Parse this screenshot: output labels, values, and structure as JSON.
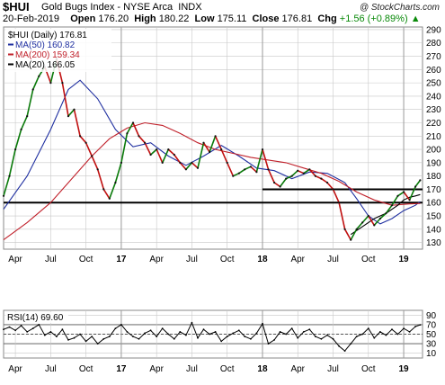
{
  "header": {
    "symbol": "$HUI",
    "index_name": "Gold Bugs Index - NYSE Arca",
    "index_type": "INDX",
    "credit": "@ StockCharts.com",
    "date": "20-Feb-2019",
    "open_label": "Open",
    "open": "176.20",
    "high_label": "High",
    "high": "180.22",
    "low_label": "Low",
    "low": "175.11",
    "close_label": "Close",
    "close": "176.81",
    "chg_label": "Chg",
    "chg": "+1.56 (+0.89%)",
    "up_arrow": "▲"
  },
  "colors": {
    "price_up": "#0a7a0a",
    "price_down": "#c01010",
    "ma50": "#1f2fa0",
    "ma200": "#c0202a",
    "ma20": "#000000",
    "rsi": "#000000",
    "grid": "#c8c8c8",
    "chg": "#0a8a0a"
  },
  "chart_data": [
    {
      "type": "line",
      "title": "",
      "legend": [
        {
          "label": "$HUI (Daily) 176.81",
          "marker": "none"
        },
        {
          "label": "MA(50) 160.82",
          "color": "#1f2fa0"
        },
        {
          "label": "MA(200) 159.34",
          "color": "#c0202a"
        },
        {
          "label": "MA(20) 166.05",
          "color": "#000000"
        }
      ],
      "legend_position": "top-left",
      "x_tick_labels": [
        "Apr",
        "Jul",
        "Oct",
        "17",
        "Apr",
        "Jul",
        "Oct",
        "18",
        "Apr",
        "Jul",
        "Oct",
        "19"
      ],
      "x_tick_months": [
        3,
        6,
        9,
        12,
        15,
        18,
        21,
        24,
        27,
        30,
        33,
        36
      ],
      "x_range_months": [
        2.0,
        37.6
      ],
      "y_ticks": [
        130,
        140,
        150,
        160,
        170,
        180,
        190,
        200,
        210,
        220,
        230,
        240,
        250,
        260,
        270,
        280,
        290
      ],
      "ylim": [
        125,
        292
      ],
      "horizontal_lines": [
        {
          "y": 170,
          "x_start_month": 24.0
        },
        {
          "y": 160,
          "x_start_month": 2.0
        }
      ],
      "series": [
        {
          "name": "$HUI (Daily)",
          "x_months": [
            2.0,
            2.5,
            3.0,
            3.5,
            4.0,
            4.5,
            5.0,
            5.5,
            6.0,
            6.5,
            7.0,
            7.5,
            8.0,
            8.5,
            9.0,
            9.5,
            10.0,
            10.5,
            11.0,
            11.5,
            12.0,
            12.5,
            13.0,
            13.5,
            14.0,
            14.5,
            15.0,
            15.5,
            16.0,
            16.5,
            17.0,
            17.5,
            18.0,
            18.5,
            19.0,
            19.5,
            20.0,
            20.5,
            21.0,
            21.5,
            22.0,
            22.5,
            23.0,
            23.5,
            24.0,
            24.5,
            25.0,
            25.5,
            26.0,
            26.5,
            27.0,
            27.5,
            28.0,
            28.5,
            29.0,
            29.5,
            30.0,
            30.5,
            31.0,
            31.5,
            32.0,
            32.5,
            33.0,
            33.5,
            34.0,
            34.5,
            35.0,
            35.5,
            36.0,
            36.5,
            37.0,
            37.4
          ],
          "values": [
            165,
            180,
            200,
            215,
            225,
            245,
            255,
            262,
            250,
            268,
            250,
            225,
            230,
            210,
            205,
            195,
            185,
            170,
            163,
            175,
            190,
            212,
            220,
            210,
            205,
            196,
            200,
            190,
            200,
            196,
            190,
            185,
            190,
            186,
            205,
            198,
            210,
            200,
            190,
            180,
            182,
            185,
            187,
            183,
            200,
            185,
            175,
            172,
            178,
            180,
            184,
            182,
            185,
            180,
            178,
            175,
            170,
            160,
            140,
            132,
            140,
            145,
            150,
            143,
            148,
            152,
            158,
            165,
            168,
            162,
            172,
            176.81
          ]
        },
        {
          "name": "MA(50)",
          "x_months": [
            2.0,
            4.0,
            6.0,
            7.5,
            8.5,
            10.0,
            11.5,
            13.0,
            14.5,
            16.0,
            17.5,
            19.0,
            20.5,
            22.0,
            23.5,
            25.0,
            26.5,
            28.0,
            29.5,
            31.0,
            32.0,
            33.0,
            34.0,
            35.0,
            36.0,
            37.0,
            37.4
          ],
          "values": [
            155,
            180,
            215,
            245,
            252,
            238,
            215,
            202,
            205,
            195,
            188,
            195,
            203,
            195,
            186,
            184,
            178,
            183,
            182,
            175,
            163,
            150,
            144,
            148,
            154,
            158,
            160.82
          ]
        },
        {
          "name": "MA(200)",
          "x_months": [
            2.0,
            4.0,
            6.0,
            8.0,
            9.5,
            11.0,
            12.5,
            14.0,
            15.5,
            17.0,
            18.5,
            20.0,
            21.5,
            23.0,
            24.5,
            26.0,
            27.5,
            29.0,
            30.5,
            32.0,
            33.5,
            35.0,
            36.5,
            37.4
          ],
          "values": [
            132,
            145,
            160,
            180,
            195,
            208,
            216,
            220,
            218,
            212,
            205,
            200,
            197,
            194,
            192,
            190,
            186,
            182,
            176,
            168,
            162,
            158,
            159,
            159.34
          ]
        },
        {
          "name": "MA(20)",
          "x_months": [
            31.5,
            32.5,
            33.5,
            34.5,
            35.5,
            36.0,
            36.5,
            37.0,
            37.4
          ],
          "values": [
            136,
            142,
            148,
            152,
            158,
            162,
            164,
            165,
            166.05
          ]
        }
      ]
    },
    {
      "type": "line",
      "title": "",
      "legend": [
        {
          "label": "RSI(14) 69.60"
        }
      ],
      "legend_position": "top-left",
      "x_tick_labels": [
        "Apr",
        "Jul",
        "Oct",
        "17",
        "Apr",
        "Jul",
        "Oct",
        "18",
        "Apr",
        "Jul",
        "Oct",
        "19"
      ],
      "y_ticks": [
        10,
        30,
        50,
        70,
        90
      ],
      "ylim": [
        0,
        100
      ],
      "reference_lines": [
        70,
        50,
        30
      ],
      "series": [
        {
          "name": "RSI(14)",
          "x_months": [
            2.0,
            2.5,
            3.0,
            3.5,
            4.0,
            4.5,
            5.0,
            5.5,
            6.0,
            6.5,
            7.0,
            7.5,
            8.0,
            8.5,
            9.0,
            9.5,
            10.0,
            10.5,
            11.0,
            11.5,
            12.0,
            12.5,
            13.0,
            13.5,
            14.0,
            14.5,
            15.0,
            15.5,
            16.0,
            16.5,
            17.0,
            17.5,
            18.0,
            18.5,
            19.0,
            19.5,
            20.0,
            20.5,
            21.0,
            21.5,
            22.0,
            22.5,
            23.0,
            23.5,
            24.0,
            24.5,
            25.0,
            25.5,
            26.0,
            26.5,
            27.0,
            27.5,
            28.0,
            28.5,
            29.0,
            29.5,
            30.0,
            30.5,
            31.0,
            31.5,
            32.0,
            32.5,
            33.0,
            33.5,
            34.0,
            34.5,
            35.0,
            35.5,
            36.0,
            36.5,
            37.0,
            37.4
          ],
          "values": [
            60,
            65,
            58,
            68,
            55,
            62,
            70,
            48,
            55,
            45,
            60,
            38,
            42,
            50,
            35,
            45,
            30,
            40,
            45,
            62,
            70,
            55,
            45,
            40,
            52,
            58,
            45,
            62,
            50,
            40,
            55,
            48,
            74,
            42,
            60,
            50,
            55,
            35,
            45,
            52,
            58,
            45,
            40,
            52,
            72,
            30,
            38,
            55,
            50,
            62,
            42,
            55,
            60,
            45,
            40,
            48,
            40,
            25,
            15,
            30,
            45,
            50,
            62,
            42,
            55,
            48,
            60,
            50,
            62,
            55,
            66,
            69.6
          ]
        }
      ]
    }
  ]
}
